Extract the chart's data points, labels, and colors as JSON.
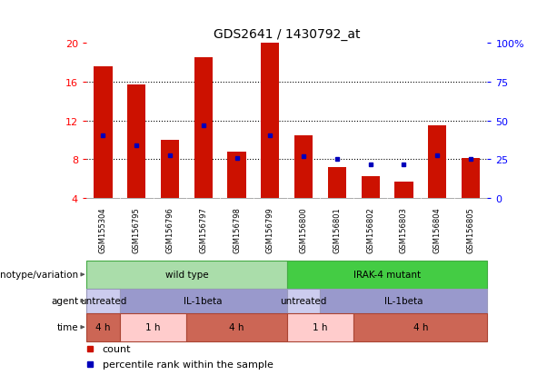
{
  "title": "GDS2641 / 1430792_at",
  "samples": [
    "GSM155304",
    "GSM156795",
    "GSM156796",
    "GSM156797",
    "GSM156798",
    "GSM156799",
    "GSM156800",
    "GSM156801",
    "GSM156802",
    "GSM156803",
    "GSM156804",
    "GSM156805"
  ],
  "bar_tops": [
    17.5,
    15.7,
    10.0,
    18.5,
    8.8,
    20.0,
    10.5,
    7.25,
    6.25,
    5.75,
    11.5,
    8.1
  ],
  "bar_base": 4.0,
  "blue_dots": [
    10.5,
    9.4,
    8.45,
    11.5,
    8.1,
    10.5,
    8.35,
    8.0,
    7.45,
    7.45,
    8.45,
    8.0
  ],
  "ylim": [
    4,
    20
  ],
  "yticks_left": [
    4,
    8,
    12,
    16,
    20
  ],
  "yticks_right": [
    0,
    25,
    50,
    75,
    100
  ],
  "y2labels": [
    "0",
    "25",
    "50",
    "75",
    "100%"
  ],
  "bar_color": "#cc1100",
  "dot_color": "#0000bb",
  "genotype_groups": [
    {
      "label": "wild type",
      "start": 0,
      "end": 6,
      "facecolor": "#aaddaa",
      "edgecolor": "#44aa44"
    },
    {
      "label": "IRAK-4 mutant",
      "start": 6,
      "end": 12,
      "facecolor": "#44cc44",
      "edgecolor": "#44aa44"
    }
  ],
  "agent_groups": [
    {
      "label": "untreated",
      "start": 0,
      "end": 1,
      "facecolor": "#ccccee",
      "edgecolor": "#9999bb"
    },
    {
      "label": "IL-1beta",
      "start": 1,
      "end": 6,
      "facecolor": "#9999cc",
      "edgecolor": "#9999bb"
    },
    {
      "label": "untreated",
      "start": 6,
      "end": 7,
      "facecolor": "#ccccee",
      "edgecolor": "#9999bb"
    },
    {
      "label": "IL-1beta",
      "start": 7,
      "end": 12,
      "facecolor": "#9999cc",
      "edgecolor": "#9999bb"
    }
  ],
  "time_groups": [
    {
      "label": "4 h",
      "start": 0,
      "end": 1,
      "facecolor": "#cc6655",
      "edgecolor": "#aa4433"
    },
    {
      "label": "1 h",
      "start": 1,
      "end": 3,
      "facecolor": "#ffcccc",
      "edgecolor": "#aa4433"
    },
    {
      "label": "4 h",
      "start": 3,
      "end": 6,
      "facecolor": "#cc6655",
      "edgecolor": "#aa4433"
    },
    {
      "label": "1 h",
      "start": 6,
      "end": 8,
      "facecolor": "#ffcccc",
      "edgecolor": "#aa4433"
    },
    {
      "label": "4 h",
      "start": 8,
      "end": 12,
      "facecolor": "#cc6655",
      "edgecolor": "#aa4433"
    }
  ],
  "row_labels": [
    "genotype/variation",
    "agent",
    "time"
  ],
  "sample_bg": "#cccccc",
  "legend_count_color": "#cc1100",
  "legend_dot_color": "#0000bb"
}
